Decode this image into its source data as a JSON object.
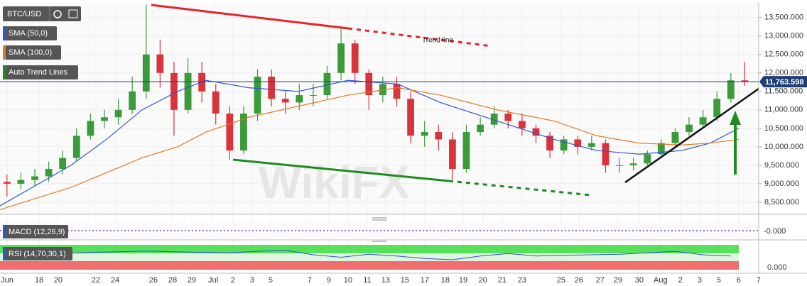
{
  "chart_data": {
    "type": "candlestick",
    "symbol": "BTC/USD",
    "xlim": [
      0,
      54.5
    ],
    "ylim": [
      8210,
      13880
    ],
    "up_color": "#3a9b3a",
    "down_color": "#d8343c",
    "yticks": [
      {
        "value": 8500,
        "label": "8,500.000"
      },
      {
        "value": 9000,
        "label": "9,000.000"
      },
      {
        "value": 9500,
        "label": "9,500.000"
      },
      {
        "value": 10000,
        "label": "10,000.000"
      },
      {
        "value": 10500,
        "label": "10,500.000"
      },
      {
        "value": 11000,
        "label": "11,000.000"
      },
      {
        "value": 11500,
        "label": "11,500.000"
      },
      {
        "value": 12000,
        "label": "12,000.000"
      },
      {
        "value": 12500,
        "label": "12,500.000"
      },
      {
        "value": 13000,
        "label": "13,000.000"
      },
      {
        "value": 13500,
        "label": "13,500.000"
      }
    ],
    "xticks": [
      {
        "value": 0.51,
        "label": "Jun"
      },
      {
        "value": 2.81,
        "label": "18"
      },
      {
        "value": 4.18,
        "label": "20"
      },
      {
        "value": 6.89,
        "label": "22"
      },
      {
        "value": 8.27,
        "label": "24"
      },
      {
        "value": 11.02,
        "label": "26"
      },
      {
        "value": 12.4,
        "label": "28"
      },
      {
        "value": 13.78,
        "label": "29"
      },
      {
        "value": 15.31,
        "label": "Jul"
      },
      {
        "value": 16.73,
        "label": "2"
      },
      {
        "value": 18.11,
        "label": "3"
      },
      {
        "value": 19.44,
        "label": "5"
      },
      {
        "value": 22.24,
        "label": "7"
      },
      {
        "value": 23.62,
        "label": "9"
      },
      {
        "value": 25.0,
        "label": "10"
      },
      {
        "value": 26.38,
        "label": "11"
      },
      {
        "value": 27.7,
        "label": "13"
      },
      {
        "value": 29.08,
        "label": "15"
      },
      {
        "value": 30.51,
        "label": "17"
      },
      {
        "value": 31.99,
        "label": "18"
      },
      {
        "value": 33.27,
        "label": "19"
      },
      {
        "value": 34.69,
        "label": "20"
      },
      {
        "value": 36.07,
        "label": "21"
      },
      {
        "value": 37.5,
        "label": "23"
      },
      {
        "value": 40.31,
        "label": "25"
      },
      {
        "value": 41.58,
        "label": "26"
      },
      {
        "value": 43.11,
        "label": "27"
      },
      {
        "value": 44.39,
        "label": "29"
      },
      {
        "value": 45.92,
        "label": "30"
      },
      {
        "value": 47.45,
        "label": "Aug"
      },
      {
        "value": 48.88,
        "label": "2"
      },
      {
        "value": 50.26,
        "label": "3"
      },
      {
        "value": 51.63,
        "label": "5"
      },
      {
        "value": 53.06,
        "label": "6"
      },
      {
        "value": 54.49,
        "label": "7"
      }
    ],
    "open": [
      9050,
      9000,
      9100,
      9200,
      9400,
      9700,
      10300,
      10700,
      10800,
      11000,
      11500,
      12500,
      12000,
      11000,
      12000,
      11500,
      10900,
      9900,
      10900,
      11900,
      11300,
      11200,
      11400,
      11400,
      12000,
      12800,
      12000,
      11400,
      11700,
      11300,
      10300,
      10400,
      10200,
      9400,
      10400,
      10600,
      10900,
      10700,
      10500,
      10300,
      9900,
      10200,
      10000,
      10100,
      9500,
      9500,
      9550,
      9800,
      10100,
      10400,
      10600,
      10800,
      11300,
      11800
    ],
    "high": [
      9250,
      9300,
      9400,
      9600,
      9900,
      10500,
      10900,
      11000,
      11300,
      11900,
      13850,
      12900,
      12300,
      12400,
      12300,
      11700,
      11100,
      11100,
      12100,
      12100,
      11500,
      11700,
      11700,
      12200,
      13200,
      12900,
      12100,
      11900,
      11900,
      11500,
      10700,
      10600,
      10400,
      10600,
      10800,
      11100,
      11000,
      10900,
      10600,
      10400,
      10300,
      10300,
      10300,
      10200,
      9700,
      9700,
      9900,
      10200,
      10500,
      10800,
      11000,
      11500,
      12000,
      12300
    ],
    "low": [
      8650,
      8850,
      8950,
      9050,
      9250,
      9600,
      10200,
      10500,
      10600,
      10900,
      11300,
      11600,
      10300,
      10900,
      11200,
      10600,
      9650,
      9800,
      10700,
      11100,
      10900,
      11000,
      11100,
      11300,
      11800,
      11700,
      11000,
      11200,
      11100,
      10100,
      10000,
      9900,
      9100,
      9300,
      10300,
      10500,
      10500,
      10300,
      10100,
      9700,
      9800,
      9800,
      9900,
      9300,
      9300,
      9350,
      9500,
      9700,
      10000,
      10300,
      10500,
      10700,
      11200,
      11650
    ],
    "close": [
      9000,
      9100,
      9200,
      9400,
      9700,
      10300,
      10700,
      10800,
      11000,
      11500,
      12500,
      12000,
      11000,
      12000,
      11500,
      10900,
      9900,
      10900,
      11900,
      11300,
      11200,
      11400,
      11400,
      12000,
      12800,
      12000,
      11400,
      11700,
      11300,
      10300,
      10400,
      10200,
      9400,
      10400,
      10600,
      10900,
      10700,
      10500,
      10300,
      9900,
      10200,
      10000,
      10100,
      9500,
      9500,
      9550,
      9800,
      10100,
      10400,
      10600,
      10800,
      11300,
      11800,
      11763.598
    ],
    "last_price_label": "11,763.598",
    "series": [
      {
        "name": "SMA (50,0)",
        "color": "#2f55d4",
        "x": [
          0,
          5.1,
          7.65,
          10.2,
          12.76,
          14.8,
          17.86,
          21.43,
          25,
          28.57,
          31.63,
          35.71,
          39.8,
          42.86,
          45.92,
          48.98,
          51.02,
          53.06
        ],
        "values": [
          8400,
          9500,
          10200,
          11000,
          11500,
          11800,
          11600,
          11500,
          11800,
          11700,
          11200,
          10700,
          10200,
          9900,
          9800,
          9900,
          10100,
          10500
        ]
      },
      {
        "name": "SMA (100,0)",
        "color": "#e07b22",
        "x": [
          0,
          5.1,
          7.65,
          10.2,
          12.76,
          14.8,
          17.86,
          21.43,
          25,
          28.57,
          31.63,
          35.71,
          39.8,
          42.86,
          45.92,
          48.98,
          51.02,
          53.06
        ],
        "values": [
          8300,
          8900,
          9300,
          9700,
          10000,
          10400,
          10800,
          11100,
          11400,
          11600,
          11400,
          11000,
          10700,
          10300,
          10100,
          10050,
          10100,
          10200
        ]
      }
    ],
    "trend_legend": "Auto Trend Lines",
    "annotation": "Trend line",
    "watermark": "WikiFX",
    "macd": {
      "name": "MACD (12,26,9)",
      "axis_label": "-0.000"
    },
    "rsi": {
      "name": "RSI (14,70,30,1)",
      "axis_label": "0.000",
      "ylim": [
        0,
        100
      ],
      "color": "#2f55d4",
      "x": [
        0.5,
        2.5,
        4.5,
        6.5,
        8.5,
        10.5,
        12.5,
        14.5,
        16.5,
        18.5,
        20.5,
        22.5,
        24.5,
        26.5,
        28.5,
        30.5,
        32.5,
        34.5,
        36.5,
        38.5,
        40.5,
        42.5,
        44.5,
        46.5,
        48.5,
        50.5,
        52.5
      ],
      "values": [
        60,
        62,
        65,
        70,
        72,
        75,
        72,
        70,
        68,
        74,
        78,
        60,
        50,
        62,
        55,
        45,
        40,
        55,
        65,
        55,
        58,
        60,
        62,
        68,
        74,
        60,
        55
      ]
    }
  }
}
